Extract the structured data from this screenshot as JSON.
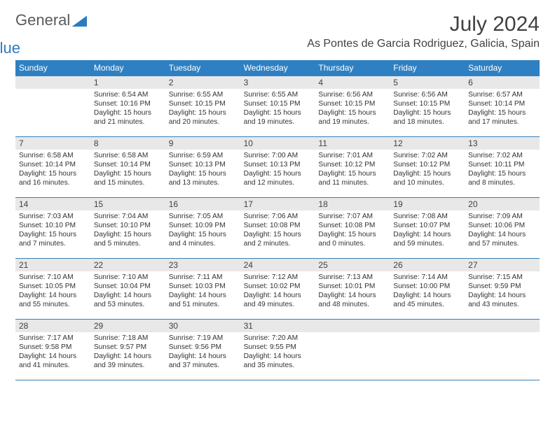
{
  "logo": {
    "word1": "General",
    "word2": "Blue"
  },
  "title": "July 2024",
  "location": "As Pontes de Garcia Rodriguez, Galicia, Spain",
  "colors": {
    "header_bg": "#2f80c2",
    "header_text": "#ffffff",
    "daybar_bg": "#e8e8e8",
    "week_divider": "#3a7fb5",
    "body_text": "#333333",
    "title_text": "#414141",
    "logo_gray": "#58595b",
    "logo_blue": "#2c7bbf",
    "background": "#ffffff"
  },
  "typography": {
    "title_fontsize": 30,
    "location_fontsize": 16,
    "weekday_fontsize": 12,
    "daynum_fontsize": 12,
    "body_fontsize": 10.2,
    "font_family": "Arial"
  },
  "layout": {
    "columns": 7,
    "rows": 5,
    "cell_min_height": 86
  },
  "weekdays": [
    "Sunday",
    "Monday",
    "Tuesday",
    "Wednesday",
    "Thursday",
    "Friday",
    "Saturday"
  ],
  "weeks": [
    [
      {
        "day": "",
        "sunrise": "",
        "sunset": "",
        "daylight": ""
      },
      {
        "day": "1",
        "sunrise": "Sunrise: 6:54 AM",
        "sunset": "Sunset: 10:16 PM",
        "daylight": "Daylight: 15 hours and 21 minutes."
      },
      {
        "day": "2",
        "sunrise": "Sunrise: 6:55 AM",
        "sunset": "Sunset: 10:15 PM",
        "daylight": "Daylight: 15 hours and 20 minutes."
      },
      {
        "day": "3",
        "sunrise": "Sunrise: 6:55 AM",
        "sunset": "Sunset: 10:15 PM",
        "daylight": "Daylight: 15 hours and 19 minutes."
      },
      {
        "day": "4",
        "sunrise": "Sunrise: 6:56 AM",
        "sunset": "Sunset: 10:15 PM",
        "daylight": "Daylight: 15 hours and 19 minutes."
      },
      {
        "day": "5",
        "sunrise": "Sunrise: 6:56 AM",
        "sunset": "Sunset: 10:15 PM",
        "daylight": "Daylight: 15 hours and 18 minutes."
      },
      {
        "day": "6",
        "sunrise": "Sunrise: 6:57 AM",
        "sunset": "Sunset: 10:14 PM",
        "daylight": "Daylight: 15 hours and 17 minutes."
      }
    ],
    [
      {
        "day": "7",
        "sunrise": "Sunrise: 6:58 AM",
        "sunset": "Sunset: 10:14 PM",
        "daylight": "Daylight: 15 hours and 16 minutes."
      },
      {
        "day": "8",
        "sunrise": "Sunrise: 6:58 AM",
        "sunset": "Sunset: 10:14 PM",
        "daylight": "Daylight: 15 hours and 15 minutes."
      },
      {
        "day": "9",
        "sunrise": "Sunrise: 6:59 AM",
        "sunset": "Sunset: 10:13 PM",
        "daylight": "Daylight: 15 hours and 13 minutes."
      },
      {
        "day": "10",
        "sunrise": "Sunrise: 7:00 AM",
        "sunset": "Sunset: 10:13 PM",
        "daylight": "Daylight: 15 hours and 12 minutes."
      },
      {
        "day": "11",
        "sunrise": "Sunrise: 7:01 AM",
        "sunset": "Sunset: 10:12 PM",
        "daylight": "Daylight: 15 hours and 11 minutes."
      },
      {
        "day": "12",
        "sunrise": "Sunrise: 7:02 AM",
        "sunset": "Sunset: 10:12 PM",
        "daylight": "Daylight: 15 hours and 10 minutes."
      },
      {
        "day": "13",
        "sunrise": "Sunrise: 7:02 AM",
        "sunset": "Sunset: 10:11 PM",
        "daylight": "Daylight: 15 hours and 8 minutes."
      }
    ],
    [
      {
        "day": "14",
        "sunrise": "Sunrise: 7:03 AM",
        "sunset": "Sunset: 10:10 PM",
        "daylight": "Daylight: 15 hours and 7 minutes."
      },
      {
        "day": "15",
        "sunrise": "Sunrise: 7:04 AM",
        "sunset": "Sunset: 10:10 PM",
        "daylight": "Daylight: 15 hours and 5 minutes."
      },
      {
        "day": "16",
        "sunrise": "Sunrise: 7:05 AM",
        "sunset": "Sunset: 10:09 PM",
        "daylight": "Daylight: 15 hours and 4 minutes."
      },
      {
        "day": "17",
        "sunrise": "Sunrise: 7:06 AM",
        "sunset": "Sunset: 10:08 PM",
        "daylight": "Daylight: 15 hours and 2 minutes."
      },
      {
        "day": "18",
        "sunrise": "Sunrise: 7:07 AM",
        "sunset": "Sunset: 10:08 PM",
        "daylight": "Daylight: 15 hours and 0 minutes."
      },
      {
        "day": "19",
        "sunrise": "Sunrise: 7:08 AM",
        "sunset": "Sunset: 10:07 PM",
        "daylight": "Daylight: 14 hours and 59 minutes."
      },
      {
        "day": "20",
        "sunrise": "Sunrise: 7:09 AM",
        "sunset": "Sunset: 10:06 PM",
        "daylight": "Daylight: 14 hours and 57 minutes."
      }
    ],
    [
      {
        "day": "21",
        "sunrise": "Sunrise: 7:10 AM",
        "sunset": "Sunset: 10:05 PM",
        "daylight": "Daylight: 14 hours and 55 minutes."
      },
      {
        "day": "22",
        "sunrise": "Sunrise: 7:10 AM",
        "sunset": "Sunset: 10:04 PM",
        "daylight": "Daylight: 14 hours and 53 minutes."
      },
      {
        "day": "23",
        "sunrise": "Sunrise: 7:11 AM",
        "sunset": "Sunset: 10:03 PM",
        "daylight": "Daylight: 14 hours and 51 minutes."
      },
      {
        "day": "24",
        "sunrise": "Sunrise: 7:12 AM",
        "sunset": "Sunset: 10:02 PM",
        "daylight": "Daylight: 14 hours and 49 minutes."
      },
      {
        "day": "25",
        "sunrise": "Sunrise: 7:13 AM",
        "sunset": "Sunset: 10:01 PM",
        "daylight": "Daylight: 14 hours and 48 minutes."
      },
      {
        "day": "26",
        "sunrise": "Sunrise: 7:14 AM",
        "sunset": "Sunset: 10:00 PM",
        "daylight": "Daylight: 14 hours and 45 minutes."
      },
      {
        "day": "27",
        "sunrise": "Sunrise: 7:15 AM",
        "sunset": "Sunset: 9:59 PM",
        "daylight": "Daylight: 14 hours and 43 minutes."
      }
    ],
    [
      {
        "day": "28",
        "sunrise": "Sunrise: 7:17 AM",
        "sunset": "Sunset: 9:58 PM",
        "daylight": "Daylight: 14 hours and 41 minutes."
      },
      {
        "day": "29",
        "sunrise": "Sunrise: 7:18 AM",
        "sunset": "Sunset: 9:57 PM",
        "daylight": "Daylight: 14 hours and 39 minutes."
      },
      {
        "day": "30",
        "sunrise": "Sunrise: 7:19 AM",
        "sunset": "Sunset: 9:56 PM",
        "daylight": "Daylight: 14 hours and 37 minutes."
      },
      {
        "day": "31",
        "sunrise": "Sunrise: 7:20 AM",
        "sunset": "Sunset: 9:55 PM",
        "daylight": "Daylight: 14 hours and 35 minutes."
      },
      {
        "day": "",
        "sunrise": "",
        "sunset": "",
        "daylight": ""
      },
      {
        "day": "",
        "sunrise": "",
        "sunset": "",
        "daylight": ""
      },
      {
        "day": "",
        "sunrise": "",
        "sunset": "",
        "daylight": ""
      }
    ]
  ]
}
